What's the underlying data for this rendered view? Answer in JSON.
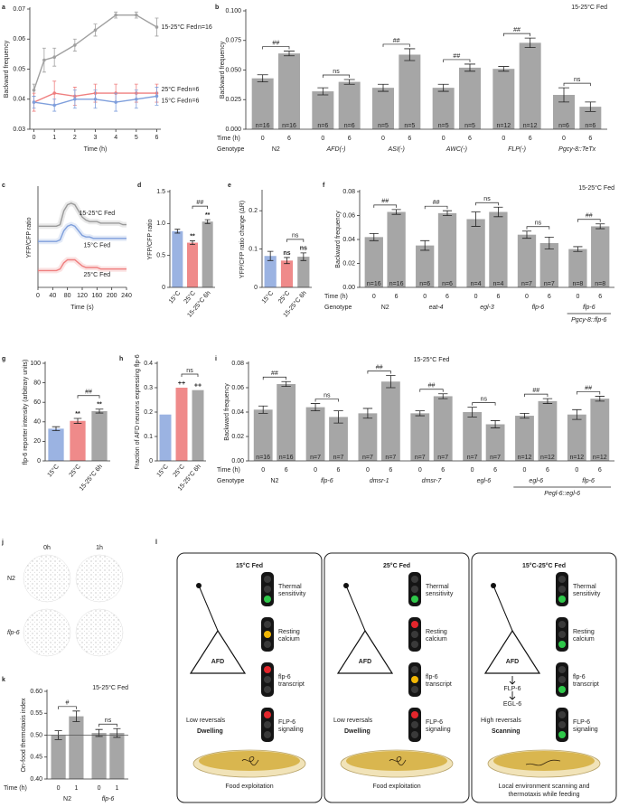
{
  "chart_data": [
    {
      "panel": "a",
      "type": "line",
      "markers": true,
      "ylabel": "Backward frequency",
      "xlabel": "Time (h)",
      "xlim": [
        -0.2,
        6.2
      ],
      "xticks": [
        0,
        1,
        2,
        3,
        4,
        5,
        6
      ],
      "ylim": [
        0.03,
        0.07
      ],
      "yticks": [
        0.03,
        0.04,
        0.05,
        0.06,
        0.07
      ],
      "series": [
        {
          "name": "15-25°C Fed",
          "n": "n=16",
          "color": "#a0a0a0",
          "x": [
            0,
            0.5,
            1,
            2,
            3,
            4,
            5,
            6
          ],
          "values": [
            0.043,
            0.053,
            0.054,
            0.058,
            0.063,
            0.068,
            0.068,
            0.064
          ],
          "errors": [
            0.002,
            0.004,
            0.003,
            0.002,
            0.002,
            0.001,
            0.001,
            0.003
          ]
        },
        {
          "name": "25°C Fed",
          "n": "n=6",
          "color": "#ef7f7f",
          "x": [
            0,
            1,
            2,
            3,
            4,
            5,
            6
          ],
          "values": [
            0.039,
            0.042,
            0.041,
            0.042,
            0.042,
            0.042,
            0.042
          ],
          "errors": [
            0.003,
            0.004,
            0.003,
            0.003,
            0.003,
            0.003,
            0.003
          ]
        },
        {
          "name": "15°C Fed",
          "n": "n=6",
          "color": "#7f9fdc",
          "x": [
            0,
            1,
            2,
            3,
            4,
            5,
            6
          ],
          "values": [
            0.039,
            0.038,
            0.04,
            0.04,
            0.039,
            0.04,
            0.041
          ],
          "errors": [
            0.002,
            0.002,
            0.003,
            0.003,
            0.003,
            0.003,
            0.003
          ]
        }
      ]
    },
    {
      "panel": "b",
      "type": "bar",
      "ylabel": "Backward frequency",
      "annotation": "15-25°C Fed",
      "color": "#a6a6a6",
      "ylim": [
        0,
        0.1
      ],
      "yticks": [
        {
          "value": 0,
          "label": "0.000"
        },
        {
          "value": 0.025,
          "label": "0.025"
        },
        {
          "value": 0.05,
          "label": "0.050"
        },
        {
          "value": 0.075,
          "label": "0.075"
        },
        {
          "value": 0.1,
          "label": "0.100"
        }
      ],
      "time_label": "Time (h)",
      "genotype_label": "Genotype",
      "categories": [
        0,
        6,
        0,
        6,
        0,
        6,
        0,
        6,
        0,
        6,
        0,
        6
      ],
      "values": [
        0.043,
        0.064,
        0.032,
        0.04,
        0.035,
        0.063,
        0.035,
        0.052,
        0.051,
        0.073,
        0.029,
        0.019
      ],
      "errors": [
        0.003,
        0.002,
        0.003,
        0.002,
        0.003,
        0.005,
        0.003,
        0.003,
        0.002,
        0.004,
        0.006,
        0.004
      ],
      "n_labels": [
        "n=16",
        "n=16",
        "n=6",
        "n=6",
        "n=5",
        "n=5",
        "n=5",
        "n=5",
        "n=12",
        "n=12",
        "n=6",
        "n=6"
      ],
      "genotypes": [
        "N2",
        "AFD(-)",
        "ASI(-)",
        "AWC(-)",
        "FLP(-)",
        "Pgcy-8::TeTx"
      ],
      "significance": [
        "##",
        "ns",
        "##",
        "##",
        "##",
        "ns"
      ]
    },
    {
      "panel": "c",
      "type": "line",
      "bands": true,
      "ylabel": "YFP/CFP ratio",
      "xlabel": "Time (s)",
      "xlim": [
        0,
        240
      ],
      "xticks": [
        0,
        40,
        80,
        120,
        160,
        200,
        240
      ],
      "ylim": [
        0.6,
        1.25
      ],
      "x": [
        0,
        10,
        20,
        30,
        40,
        50,
        60,
        70,
        80,
        90,
        100,
        110,
        120,
        130,
        140,
        150,
        160,
        170,
        180,
        190,
        200,
        210,
        220,
        230,
        240
      ],
      "series": [
        {
          "name": "15-25°C Fed",
          "color": "#9a9a9a",
          "values": [
            1.0,
            1.0,
            1.0,
            1.0,
            1.0,
            1.0,
            1.01,
            1.1,
            1.14,
            1.15,
            1.14,
            1.1,
            1.06,
            1.04,
            1.03,
            1.03,
            1.03,
            1.02,
            1.02,
            1.02,
            1.02,
            1.02,
            1.02,
            1.01,
            1.01
          ]
        },
        {
          "name": "15°C Fed",
          "color": "#7f9fdc",
          "values": [
            0.9,
            0.9,
            0.9,
            0.9,
            0.9,
            0.9,
            0.91,
            0.97,
            1.0,
            1.01,
            1.0,
            0.97,
            0.94,
            0.93,
            0.93,
            0.92,
            0.92,
            0.92,
            0.92,
            0.92,
            0.92,
            0.92,
            0.92,
            0.92,
            0.92
          ]
        },
        {
          "name": "25°C Fed",
          "color": "#ef7f7f",
          "values": [
            0.71,
            0.71,
            0.71,
            0.71,
            0.71,
            0.71,
            0.72,
            0.76,
            0.78,
            0.78,
            0.78,
            0.76,
            0.74,
            0.73,
            0.73,
            0.73,
            0.73,
            0.72,
            0.72,
            0.72,
            0.72,
            0.72,
            0.72,
            0.72,
            0.72
          ]
        }
      ]
    },
    {
      "panel": "d",
      "type": "bar",
      "ylabel": "YFP/CFP ratio",
      "ylim": [
        0,
        1.5
      ],
      "yticks": [
        0,
        0.5,
        {
          "value": 1,
          "label": "1.0"
        },
        1.5
      ],
      "categories": [
        "15°C",
        "25°C",
        "15-25°C 6h"
      ],
      "values": [
        0.88,
        0.7,
        1.03
      ],
      "errors": [
        0.03,
        0.03,
        0.03
      ],
      "colors": [
        "#9bb3e2",
        "#ef8a8a",
        "#a6a6a6"
      ],
      "bar_marks": [
        null,
        "**",
        "**"
      ],
      "bracket_label": "##"
    },
    {
      "panel": "e",
      "type": "bar",
      "ylabel": "YFP/CFP ratio change (ΔR)",
      "ylim": [
        0,
        0.25
      ],
      "yticks": [
        0,
        0.1,
        0.2
      ],
      "categories": [
        "15°C",
        "25°C",
        "15-25°C 6h"
      ],
      "values": [
        0.082,
        0.07,
        0.08
      ],
      "errors": [
        0.012,
        0.008,
        0.01
      ],
      "colors": [
        "#9bb3e2",
        "#ef8a8a",
        "#a6a6a6"
      ],
      "bar_marks": [
        null,
        "ns",
        "ns"
      ],
      "bracket_label": "ns"
    },
    {
      "panel": "f",
      "type": "bar",
      "ylabel": "Backward frequency",
      "annotation": "15-25°C Fed",
      "color": "#a6a6a6",
      "ylim": [
        0,
        0.08
      ],
      "yticks": [
        {
          "value": 0,
          "label": "0.00"
        },
        {
          "value": 0.02,
          "label": "0.02"
        },
        {
          "value": 0.04,
          "label": "0.04"
        },
        {
          "value": 0.06,
          "label": "0.06"
        },
        {
          "value": 0.08,
          "label": "0.08"
        }
      ],
      "time_label": "Time (h)",
      "genotype_label": "Genotype",
      "categories": [
        0,
        6,
        0,
        6,
        0,
        6,
        0,
        6,
        0,
        6
      ],
      "values": [
        0.042,
        0.063,
        0.035,
        0.062,
        0.057,
        0.063,
        0.044,
        0.037,
        0.032,
        0.051
      ],
      "errors": [
        0.003,
        0.002,
        0.004,
        0.002,
        0.006,
        0.004,
        0.003,
        0.005,
        0.002,
        0.002
      ],
      "n_labels": [
        "n=16",
        "n=16",
        "n=6",
        "n=6",
        "n=4",
        "n=4",
        "n=7",
        "n=7",
        "n=8",
        "n=8"
      ],
      "genotypes": [
        "N2",
        "eat-4",
        "egl-3",
        "flp-6",
        "flp-6"
      ],
      "sublabel": "Pgcy-8::flp-6",
      "significance": [
        "##",
        "##",
        "ns",
        "ns",
        "##"
      ]
    },
    {
      "panel": "g",
      "type": "bar",
      "ylabel": "flp-6 reporter intensity (arbitrary units)",
      "ylim": [
        0,
        100
      ],
      "yticks": [
        0,
        20,
        40,
        60,
        80,
        100
      ],
      "categories": [
        "15°C",
        "25°C",
        "15-25°C 6h"
      ],
      "values": [
        33,
        41,
        51
      ],
      "errors": [
        2,
        2.5,
        2
      ],
      "colors": [
        "#9bb3e2",
        "#ef8a8a",
        "#a6a6a6"
      ],
      "bar_marks": [
        null,
        "**",
        "**"
      ],
      "bracket_label": "##"
    },
    {
      "panel": "h",
      "type": "bar",
      "ylabel": "Fraction of AFD neurons expressing flp-6",
      "ylim": [
        0,
        0.4
      ],
      "yticks": [
        0,
        0.1,
        0.2,
        0.3,
        0.4
      ],
      "categories": [
        "15°C",
        "25°C",
        "15-25°C 6h"
      ],
      "values": [
        0.19,
        0.3,
        0.29
      ],
      "colors": [
        "#9bb3e2",
        "#ef8a8a",
        "#a6a6a6"
      ],
      "bar_marks": [
        null,
        "++",
        "++"
      ],
      "bracket_label": "ns"
    },
    {
      "panel": "i",
      "type": "bar",
      "ylabel": "Backward frequency",
      "annotation": "15-25°C Fed",
      "color": "#a6a6a6",
      "ylim": [
        0,
        0.08
      ],
      "yticks": [
        {
          "value": 0,
          "label": "0.00"
        },
        {
          "value": 0.02,
          "label": "0.02"
        },
        {
          "value": 0.04,
          "label": "0.04"
        },
        {
          "value": 0.06,
          "label": "0.06"
        },
        {
          "value": 0.08,
          "label": "0.08"
        }
      ],
      "time_label": "Time (h)",
      "genotype_label": "Genotype",
      "categories": [
        0,
        6,
        0,
        6,
        0,
        6,
        0,
        6,
        0,
        6,
        0,
        6,
        0,
        6
      ],
      "values": [
        0.042,
        0.063,
        0.044,
        0.036,
        0.039,
        0.065,
        0.039,
        0.053,
        0.04,
        0.03,
        0.037,
        0.049,
        0.038,
        0.051
      ],
      "errors": [
        0.003,
        0.002,
        0.003,
        0.005,
        0.004,
        0.005,
        0.002,
        0.002,
        0.004,
        0.003,
        0.002,
        0.002,
        0.004,
        0.002
      ],
      "n_labels": [
        "n=16",
        "n=16",
        "n=7",
        "n=7",
        "n=7",
        "n=7",
        "n=7",
        "n=7",
        "n=7",
        "n=7",
        "n=12",
        "n=12",
        "n=12",
        "n=12"
      ],
      "genotypes": [
        "N2",
        "flp-6",
        "dmsr-1",
        "dmsr-7",
        "egl-6",
        "egl-6",
        "flp-6"
      ],
      "sublabel": "Pegl-6::egl-6",
      "significance": [
        "##",
        "ns",
        "##",
        "##",
        "ns",
        "##",
        "##"
      ]
    },
    {
      "panel": "k",
      "type": "bar",
      "ylabel": "On-food thermotaxis index",
      "annotation": "15-25°C Fed",
      "color": "#a6a6a6",
      "ylim": [
        0.4,
        0.6
      ],
      "yticks": [
        {
          "value": 0.4,
          "label": "0.40"
        },
        0.45,
        {
          "value": 0.5,
          "label": "0.50"
        },
        0.55,
        {
          "value": 0.6,
          "label": "0.60"
        }
      ],
      "hline": 0.5,
      "time_label": "Time (h)",
      "categories": [
        0,
        1,
        0,
        1
      ],
      "values": [
        0.5,
        0.543,
        0.505,
        0.505
      ],
      "errors": [
        0.01,
        0.012,
        0.008,
        0.01
      ],
      "genotypes": [
        "N2",
        "flp-6"
      ],
      "significance": [
        "#",
        "ns"
      ]
    }
  ],
  "panel_j": {
    "letter": "j",
    "columns": [
      "0h",
      "1h"
    ],
    "rows": [
      "N2",
      "flp-6"
    ]
  },
  "panel_l": {
    "letter": "l",
    "boxes": [
      {
        "title": "15°C Fed",
        "color": "#7f9fdc",
        "neuron": "AFD",
        "lights": [
          {
            "label": "Thermal sensitivity",
            "lit": "green"
          },
          {
            "label": "Resting calcium",
            "lit": "yellow"
          },
          {
            "label": "flp-6 transcript",
            "lit": "red"
          },
          {
            "label": "FLP-6 signaling",
            "lit": "red"
          }
        ],
        "behavior": "Low reversals",
        "mode": "Dwelling",
        "outcome": "Food exploitation"
      },
      {
        "title": "25°C Fed",
        "color": "#ef7f7f",
        "neuron": "AFD",
        "lights": [
          {
            "label": "Thermal sensitivity",
            "lit": "green"
          },
          {
            "label": "Resting calcium",
            "lit": "red"
          },
          {
            "label": "flp-6 transcript",
            "lit": "yellow"
          },
          {
            "label": "FLP-6 signaling",
            "lit": "red"
          }
        ],
        "behavior": "Low reversals",
        "mode": "Dwelling",
        "outcome": "Food exploitation"
      },
      {
        "title": "15°C-25°C Fed",
        "color": "#9a9a9a",
        "neuron": "AFD",
        "cascade": [
          "FLP-6",
          "EGL-6"
        ],
        "lights": [
          {
            "label": "Thermal sensitivity",
            "lit": "green"
          },
          {
            "label": "Resting calcium",
            "lit": "green"
          },
          {
            "label": "flp-6 transcript",
            "lit": "green"
          },
          {
            "label": "FLP-6 signaling",
            "lit": "green"
          }
        ],
        "behavior": "High reversals",
        "mode": "Scanning",
        "outcome": "Local environment scanning and thermotaxis while feeding"
      }
    ]
  }
}
